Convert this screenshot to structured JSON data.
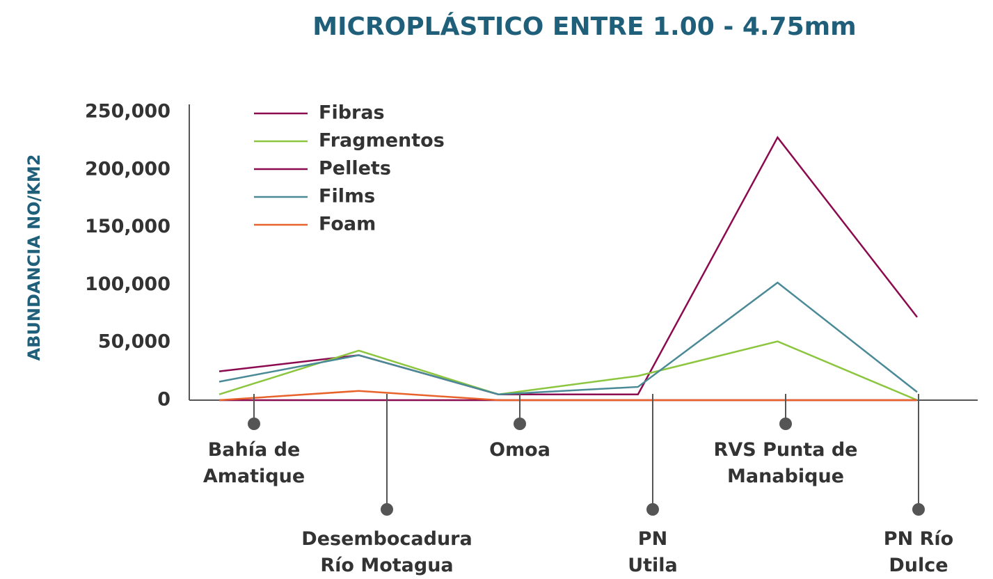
{
  "chart_data": {
    "type": "line",
    "title": "MICROPLÁSTICO ENTRE 1.00 - 4.75mm",
    "y_label": "ABUNDANCIA NO/KM2",
    "categories": [
      "Bahía de\nAmatique",
      "Desembocadura\nRío Motagua",
      "Omoa",
      "PN\nUtila",
      "RVS Punta de\nManabique",
      "PN Río\nDulce"
    ],
    "series": [
      {
        "name": "Fibras",
        "color": "#8b0a50",
        "values": [
          25000,
          39000,
          5000,
          5000,
          228000,
          72000
        ]
      },
      {
        "name": "Fragmentos",
        "color": "#8cc63f",
        "values": [
          5000,
          43000,
          5000,
          21000,
          51000,
          0
        ]
      },
      {
        "name": "Pellets",
        "color": "#8b0a50",
        "values": [
          0,
          0,
          0,
          0,
          0,
          0
        ]
      },
      {
        "name": "Films",
        "color": "#4a8a96",
        "values": [
          16000,
          39000,
          5000,
          11500,
          102000,
          7000
        ]
      },
      {
        "name": "Foam",
        "color": "#e8632c",
        "values": [
          0,
          8000,
          0,
          0,
          0,
          0
        ]
      }
    ],
    "ylim": [
      0,
      250000
    ],
    "yticks": [
      {
        "value": 0,
        "label": "0"
      },
      {
        "value": 50000,
        "label": "50,000"
      },
      {
        "value": 100000,
        "label": "100,000"
      },
      {
        "value": 150000,
        "label": "150,000"
      },
      {
        "value": 200000,
        "label": "200,000"
      },
      {
        "value": 250000,
        "label": "250,000"
      }
    ],
    "legend": "top-left"
  }
}
